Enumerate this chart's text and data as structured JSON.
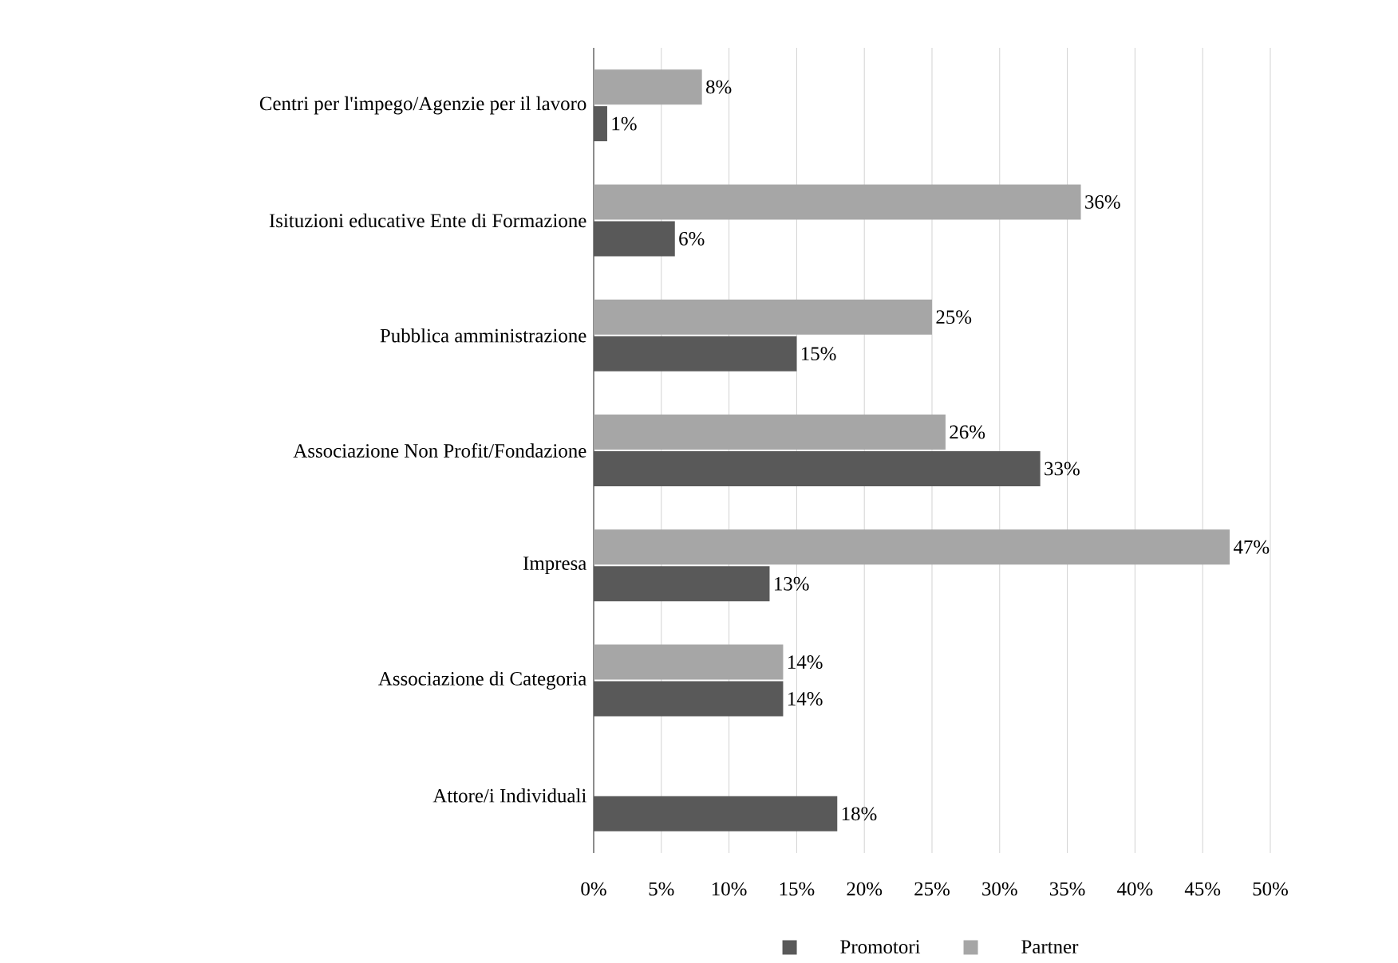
{
  "chart_data": {
    "type": "bar",
    "orientation": "horizontal",
    "categories": [
      "Centri per l'impego/Agenzie per il lavoro",
      "Isituzioni educative Ente di Formazione",
      "Pubblica amministrazione",
      "Associazione Non Profit/Fondazione",
      "Impresa",
      "Associazione di Categoria",
      "Attore/i Individuali"
    ],
    "series": [
      {
        "name": "Promotori",
        "color": "#595959",
        "values": [
          1,
          6,
          15,
          33,
          13,
          14,
          18
        ],
        "value_labels": [
          "1%",
          "6%",
          "15%",
          "33%",
          "13%",
          "14%",
          "18%"
        ]
      },
      {
        "name": "Partner",
        "color": "#a6a6a6",
        "values": [
          8,
          36,
          25,
          26,
          47,
          14,
          null
        ],
        "value_labels": [
          "8%",
          "36%",
          "25%",
          "26%",
          "47%",
          "14%",
          null
        ]
      }
    ],
    "xlim": [
      0,
      50
    ],
    "xticks": [
      {
        "value": 0,
        "label": "0%"
      },
      {
        "value": 5,
        "label": "5%"
      },
      {
        "value": 10,
        "label": "10%"
      },
      {
        "value": 15,
        "label": "15%"
      },
      {
        "value": 20,
        "label": "20%"
      },
      {
        "value": 25,
        "label": "25%"
      },
      {
        "value": 30,
        "label": "30%"
      },
      {
        "value": 35,
        "label": "35%"
      },
      {
        "value": 40,
        "label": "40%"
      },
      {
        "value": 45,
        "label": "45%"
      },
      {
        "value": 50,
        "label": "50%"
      }
    ],
    "grid": "x",
    "legend": "bottom"
  }
}
